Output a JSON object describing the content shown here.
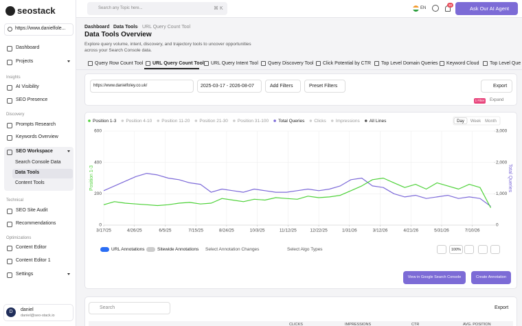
{
  "sidebar": {
    "brand": "seostack",
    "site": "https://www.danielfole...",
    "nav": [
      "Dashboard",
      "Projects",
      "Insights",
      "AI Visibility",
      "SEO Presence",
      "Discovery",
      "Prompts Research",
      "Keywords Overview",
      "SEO Workspace",
      "Search Console Data",
      "Data Tools",
      "Content Tools",
      "Technical",
      "SEO Site Audit",
      "Recommendations",
      "Optimizations",
      "Content Editor",
      "Content Editor 1",
      "Settings"
    ],
    "user": {
      "initial": "D",
      "name": "daniel",
      "email": "daniel@seo-stack.io"
    }
  },
  "header": {
    "search": "Search any Topic here...",
    "shortcut": "⌘ K",
    "lang": "EN",
    "badge": "30",
    "agent": "Ask Our AI Agent"
  },
  "breadcrumb": [
    "Dashboard",
    "Data Tools",
    "URL Query Count Tool"
  ],
  "title": "Data Tools Overview",
  "description": [
    "Explore query volume, intent, discovery, and trajectory tools to uncover opportunities",
    "across your Search Console data."
  ],
  "tabs": [
    "Query Row Count Tool",
    "URL Query Count Tool",
    "URL Query Intent Tool",
    "Query Discovery Tool",
    "Click Potential by CTR",
    "Top Level Domain Queries",
    "Keyword Cloud",
    "Top Level Que"
  ],
  "filters": {
    "url": "https://www.danielfoley.co.uk/",
    "dates": "2025-03-17 - 2026-08-07",
    "add": "Add Filters",
    "preset": "Preset Filters",
    "export": "Export",
    "filter_badge": "1 Filter",
    "expand": "Expand"
  },
  "chart_data": {
    "type": "line",
    "legend_middle": [
      "Position 4-10",
      "Position 11-20",
      "Position 21-30",
      "Position 31-100"
    ],
    "legend_end": [
      "Clicks",
      "Impressions",
      "All Lines"
    ],
    "ranges": [
      "Day",
      "Week",
      "Month"
    ],
    "x": [
      "2025-03-17",
      "2025-03-31",
      "2025-04-14",
      "2025-04-28",
      "2025-05-12",
      "2025-05-26",
      "2025-06-09",
      "2025-06-23",
      "2025-07-07",
      "2025-07-21",
      "2025-08-04",
      "2025-08-18",
      "2025-09-01",
      "2025-09-15",
      "2025-09-29",
      "2025-10-13",
      "2025-10-27",
      "2025-11-10",
      "2025-11-24",
      "2025-12-08",
      "2025-12-22",
      "2026-01-05",
      "2026-01-19",
      "2026-02-02",
      "2026-02-16",
      "2026-03-02",
      "2026-03-16",
      "2026-03-30",
      "2026-04-13",
      "2026-04-27",
      "2026-05-11",
      "2026-05-25",
      "2026-06-08",
      "2026-06-22",
      "2026-07-06",
      "2026-07-20",
      "2026-08-03"
    ],
    "xlim": [
      "2025-03-17",
      "2026-08-07"
    ],
    "xticks": [
      {
        "value": "2025-03-17",
        "label": "3/17/25"
      },
      {
        "value": "2025-04-26",
        "label": "4/26/25"
      },
      {
        "value": "2025-06-05",
        "label": "6/5/25"
      },
      {
        "value": "2025-07-15",
        "label": "7/15/25"
      },
      {
        "value": "2025-08-24",
        "label": "8/24/25"
      },
      {
        "value": "2025-10-03",
        "label": "10/3/25"
      },
      {
        "value": "2025-11-12",
        "label": "11/12/25"
      },
      {
        "value": "2025-12-22",
        "label": "12/22/25"
      },
      {
        "value": "2026-01-31",
        "label": "1/31/26"
      },
      {
        "value": "2026-03-12",
        "label": "3/12/26"
      },
      {
        "value": "2026-04-21",
        "label": "4/21/26"
      },
      {
        "value": "2026-05-31",
        "label": "5/31/26"
      },
      {
        "value": "2026-07-10",
        "label": "7/10/26"
      }
    ],
    "ylabel": "Position 1-3",
    "y2label": "Total Queries",
    "ylim": [
      0,
      600
    ],
    "yticks": [
      0,
      200,
      400,
      600
    ],
    "y2lim": [
      0,
      3000
    ],
    "y2ticks": [
      0,
      {
        "value": 1000,
        "label": "1,000"
      },
      {
        "value": 2000,
        "label": "2,000"
      },
      {
        "value": 3000,
        "label": "3,000"
      }
    ],
    "grid": true,
    "series": [
      {
        "name": "Position 1-3",
        "color": "#4cd137",
        "values": [
          130,
          150,
          140,
          135,
          130,
          125,
          130,
          140,
          145,
          135,
          140,
          170,
          160,
          150,
          165,
          160,
          175,
          170,
          165,
          185,
          175,
          180,
          190,
          220,
          250,
          290,
          300,
          270,
          240,
          260,
          230,
          270,
          250,
          230,
          260,
          240,
          110
        ]
      },
      {
        "name": "Total Queries",
        "color": "#7b68d8",
        "axis": "y2",
        "values": [
          1100,
          1250,
          1400,
          1550,
          1650,
          1600,
          1500,
          1450,
          1350,
          1300,
          1050,
          1150,
          1100,
          1050,
          1150,
          1100,
          1050,
          1050,
          1100,
          1150,
          1100,
          1150,
          1250,
          1450,
          1500,
          1250,
          1200,
          1000,
          900,
          950,
          850,
          900,
          950,
          850,
          900,
          850,
          600
        ]
      }
    ]
  },
  "annotations": {
    "url": "URL Annotations",
    "sitewide": "Sitewide Annotations",
    "changes": "Select Annotation Changes",
    "algo": "Select Algo Types",
    "zoom": "100%",
    "gsc": "View in Google Search Console",
    "create": "Create Annotation"
  },
  "table": {
    "search": "Search",
    "export": "Export",
    "columns": [
      "CLICKS",
      "IMPRESSIONS",
      "CTR",
      "AVG. POSITION"
    ]
  }
}
